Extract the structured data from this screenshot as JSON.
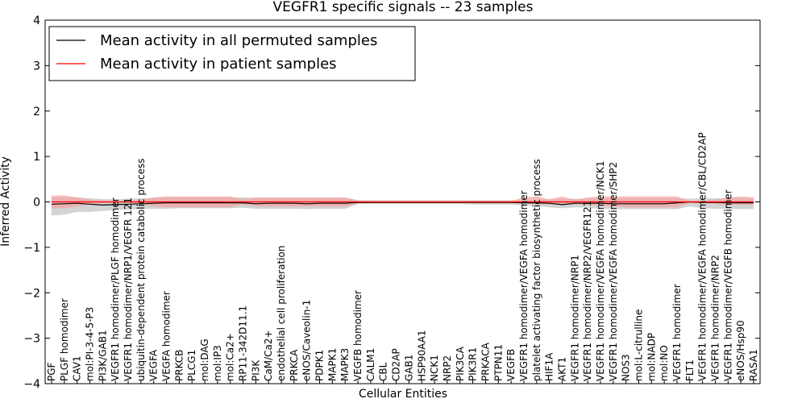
{
  "chart_data": {
    "type": "line",
    "title": "VEGFR1 specific signals -- 23 samples",
    "xlabel": "Cellular Entities",
    "ylabel": "Inferred Activity",
    "ylim": [
      -4,
      4
    ],
    "yticks": [
      "−4",
      "−3",
      "−2",
      "−1",
      "0",
      "1",
      "2",
      "3",
      "4"
    ],
    "yticks_values": [
      -4,
      -3,
      -2,
      -1,
      0,
      1,
      2,
      3,
      4
    ],
    "legend_position": "top-left",
    "categories": [
      "PGF",
      "PLGF homodimer",
      "CAV1",
      "mol:PI-3-4-5-P3",
      "PI3K/GAB1",
      "VEGFR1 homodimer/PLGF homodimer",
      "VEGFR1 homodimer/NRP1/VEGFR 121",
      "ubiquitin-dependent protein catabolic process",
      "VEGFA",
      "VEGFA homodimer",
      "PRKCB",
      "PLCG1",
      "mol:DAG",
      "mol:IP3",
      "mol:Ca2+",
      "RP11-342D11.1",
      "PI3K",
      "CaM/Ca2+",
      "endothelial cell proliferation",
      "PRKCA",
      "eNOS/Caveolin-1",
      "PDPK1",
      "MAPK1",
      "MAPK3",
      "VEGFB homodimer",
      "CALM1",
      "CBL",
      "CD2AP",
      "GAB1",
      "HSP90AA1",
      "NCK1",
      "NRP2",
      "PIK3CA",
      "PIK3R1",
      "PRKACA",
      "PTPN11",
      "VEGFB",
      "VEGFR1 homodimer/VEGFA homodimer",
      "platelet activating factor biosynthetic process",
      "HIF1A",
      "AKT1",
      "VEGFR1 homodimer/NRP1",
      "VEGFR1 homodimer/NRP2/VEGFR121",
      "VEGFR1 homodimer/VEGFA homodimer/NCK1",
      "VEGFR1 homodimer/VEGFA homodimer/SHP2",
      "NOS3",
      "mol:L-citrulline",
      "mol:NADP",
      "mol:NO",
      "VEGFR1 homodimer",
      "FLT1",
      "VEGFR1 homodimer/VEGFA homodimer/CBL/CD2AP",
      "VEGFR1 homodimer/NRP2",
      "VEGFR1 homodimer/VEGFB homodimer",
      "eNOS/Hsp90",
      "RASA1"
    ],
    "series": [
      {
        "name": "Mean activity in all permuted samples",
        "color": "#000000",
        "band_color": "#c8c8c8",
        "values": [
          -0.05,
          -0.04,
          -0.03,
          -0.05,
          -0.07,
          -0.06,
          -0.05,
          -0.04,
          -0.03,
          -0.02,
          -0.02,
          -0.02,
          -0.02,
          -0.02,
          -0.02,
          -0.02,
          -0.04,
          -0.03,
          -0.03,
          -0.03,
          -0.04,
          -0.03,
          -0.03,
          -0.03,
          -0.01,
          -0.01,
          -0.01,
          -0.01,
          -0.01,
          -0.01,
          -0.01,
          -0.01,
          -0.01,
          -0.01,
          -0.01,
          -0.01,
          -0.01,
          -0.02,
          -0.02,
          -0.03,
          -0.06,
          -0.03,
          -0.03,
          -0.03,
          -0.04,
          -0.04,
          -0.04,
          -0.04,
          -0.04,
          -0.02,
          0.0,
          -0.01,
          -0.01,
          -0.02,
          -0.02,
          -0.02
        ],
        "lower": [
          -0.3,
          -0.28,
          -0.22,
          -0.22,
          -0.2,
          -0.18,
          -0.17,
          -0.16,
          -0.15,
          -0.15,
          -0.14,
          -0.14,
          -0.14,
          -0.14,
          -0.14,
          -0.13,
          -0.15,
          -0.15,
          -0.15,
          -0.15,
          -0.16,
          -0.15,
          -0.15,
          -0.15,
          -0.05,
          -0.05,
          -0.05,
          -0.05,
          -0.05,
          -0.05,
          -0.05,
          -0.05,
          -0.05,
          -0.06,
          -0.06,
          -0.06,
          -0.06,
          -0.08,
          -0.08,
          -0.12,
          -0.14,
          -0.12,
          -0.13,
          -0.15,
          -0.16,
          -0.16,
          -0.16,
          -0.16,
          -0.16,
          -0.16,
          -0.1,
          -0.14,
          -0.15,
          -0.15,
          -0.16,
          -0.16
        ],
        "upper": [
          0.1,
          0.1,
          0.1,
          0.08,
          0.06,
          0.06,
          0.07,
          0.08,
          0.09,
          0.1,
          0.1,
          0.1,
          0.1,
          0.1,
          0.1,
          0.1,
          0.09,
          0.09,
          0.09,
          0.09,
          0.09,
          0.09,
          0.09,
          0.09,
          0.04,
          0.04,
          0.04,
          0.04,
          0.04,
          0.04,
          0.04,
          0.04,
          0.04,
          0.04,
          0.04,
          0.04,
          0.04,
          0.04,
          0.05,
          0.06,
          0.06,
          0.07,
          0.07,
          0.07,
          0.08,
          0.08,
          0.08,
          0.08,
          0.08,
          0.08,
          0.07,
          0.08,
          0.08,
          0.08,
          0.08,
          0.08
        ]
      },
      {
        "name": "Mean activity in patient samples",
        "color": "#ff0000",
        "band_color": "#f4a6a6",
        "values": [
          0.0,
          0.0,
          0.0,
          0.0,
          0.0,
          0.0,
          0.0,
          0.0,
          0.0,
          0.0,
          0.0,
          0.0,
          0.0,
          0.0,
          0.0,
          0.0,
          0.0,
          0.0,
          0.0,
          0.0,
          0.0,
          0.0,
          0.0,
          0.0,
          0.0,
          0.0,
          0.0,
          0.0,
          0.0,
          0.0,
          0.0,
          0.0,
          0.0,
          0.0,
          0.0,
          0.0,
          0.0,
          0.0,
          0.0,
          0.0,
          0.0,
          0.0,
          0.0,
          0.0,
          0.0,
          0.0,
          0.0,
          0.0,
          0.0,
          0.0,
          0.0,
          0.0,
          0.0,
          0.0,
          0.0,
          0.0
        ],
        "lower": [
          -0.14,
          -0.14,
          -0.1,
          -0.05,
          -0.03,
          -0.02,
          -0.02,
          -0.05,
          -0.1,
          -0.12,
          -0.12,
          -0.12,
          -0.12,
          -0.12,
          -0.12,
          -0.05,
          -0.1,
          -0.1,
          -0.1,
          -0.1,
          -0.1,
          -0.1,
          -0.1,
          -0.1,
          -0.03,
          -0.02,
          -0.02,
          -0.02,
          -0.02,
          -0.02,
          -0.02,
          -0.02,
          -0.02,
          -0.02,
          -0.02,
          -0.02,
          -0.02,
          -0.04,
          -0.05,
          -0.06,
          -0.03,
          -0.05,
          -0.06,
          -0.08,
          -0.1,
          -0.12,
          -0.12,
          -0.12,
          -0.12,
          -0.12,
          -0.02,
          -0.03,
          -0.05,
          -0.06,
          -0.06,
          -0.06
        ],
        "upper": [
          0.14,
          0.14,
          0.1,
          0.05,
          0.03,
          0.02,
          0.02,
          0.05,
          0.1,
          0.12,
          0.12,
          0.12,
          0.12,
          0.12,
          0.12,
          0.05,
          0.1,
          0.1,
          0.1,
          0.1,
          0.1,
          0.1,
          0.1,
          0.1,
          0.03,
          0.02,
          0.02,
          0.02,
          0.02,
          0.02,
          0.02,
          0.02,
          0.02,
          0.02,
          0.02,
          0.02,
          0.02,
          0.1,
          0.12,
          0.06,
          0.12,
          0.05,
          0.1,
          0.12,
          0.12,
          0.12,
          0.12,
          0.12,
          0.12,
          0.12,
          0.02,
          0.03,
          0.05,
          0.1,
          0.12,
          0.1
        ]
      }
    ]
  }
}
